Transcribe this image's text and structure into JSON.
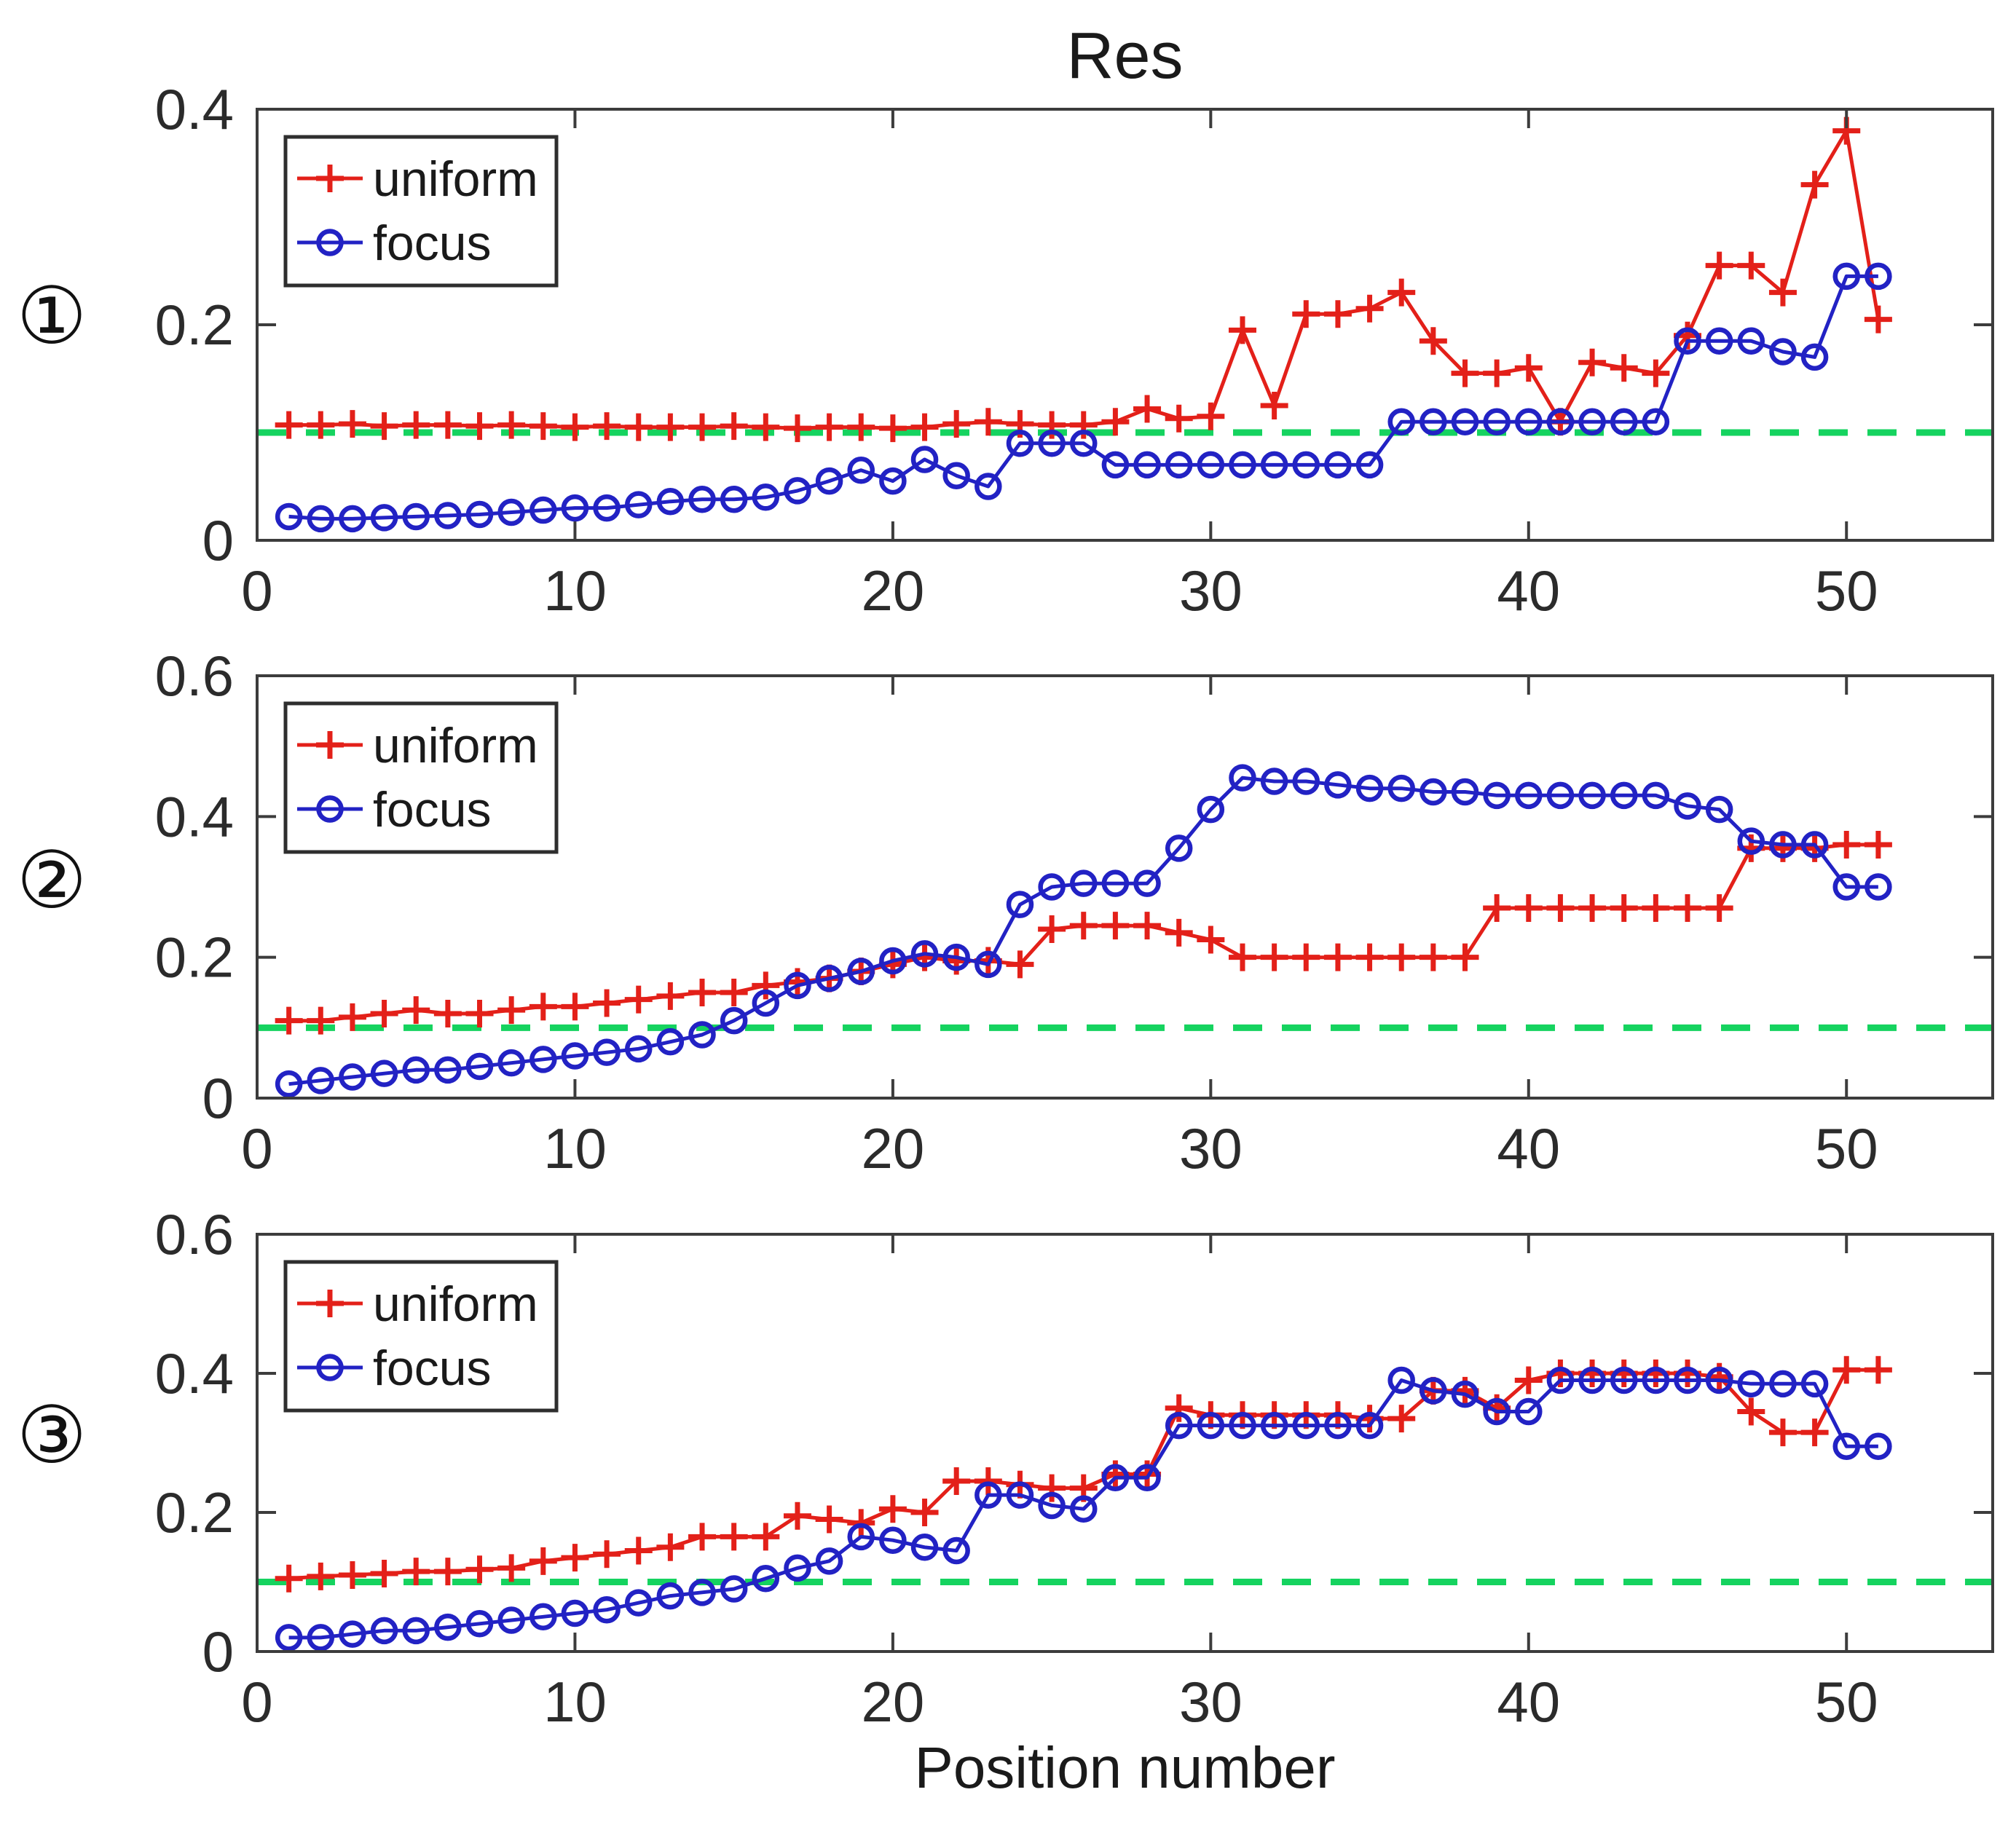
{
  "figure": {
    "title": "Res",
    "xlabel": "Position number",
    "panel_labels": [
      "①",
      "②",
      "③"
    ],
    "colors": {
      "uniform": "#e32019",
      "focus": "#2222c4",
      "threshold": "#15d35f",
      "axis": "#3c3c3c",
      "tick_text": "#2b2b2b",
      "legend_border": "#2e2e2e",
      "background": "#ffffff"
    }
  },
  "chart_data": [
    {
      "type": "line",
      "panel_label": "①",
      "x_range": [
        1,
        51
      ],
      "xlim": [
        0,
        54.6
      ],
      "ylim": [
        0,
        0.4
      ],
      "xticks": [
        0,
        10,
        20,
        30,
        40,
        50
      ],
      "yticks": [
        0,
        0.2,
        0.4
      ],
      "grid": false,
      "threshold_y": 0.1,
      "legend": {
        "position": "top-left",
        "entries": [
          "uniform",
          "focus"
        ]
      },
      "series": [
        {
          "name": "uniform",
          "color": "#e32019",
          "marker": "plus",
          "values": [
            0.107,
            0.107,
            0.108,
            0.106,
            0.107,
            0.107,
            0.106,
            0.107,
            0.106,
            0.105,
            0.106,
            0.105,
            0.105,
            0.105,
            0.106,
            0.105,
            0.104,
            0.105,
            0.105,
            0.104,
            0.105,
            0.108,
            0.11,
            0.108,
            0.107,
            0.107,
            0.11,
            0.122,
            0.113,
            0.115,
            0.195,
            0.125,
            0.21,
            0.21,
            0.215,
            0.23,
            0.185,
            0.155,
            0.155,
            0.16,
            0.11,
            0.165,
            0.16,
            0.155,
            0.19,
            0.255,
            0.255,
            0.23,
            0.33,
            0.38,
            0.205
          ]
        },
        {
          "name": "focus",
          "color": "#2222c4",
          "marker": "circle",
          "values": [
            0.022,
            0.02,
            0.02,
            0.021,
            0.022,
            0.023,
            0.024,
            0.026,
            0.028,
            0.03,
            0.03,
            0.033,
            0.036,
            0.038,
            0.038,
            0.04,
            0.046,
            0.055,
            0.065,
            0.055,
            0.075,
            0.06,
            0.05,
            0.09,
            0.09,
            0.09,
            0.07,
            0.07,
            0.07,
            0.07,
            0.07,
            0.07,
            0.07,
            0.07,
            0.07,
            0.11,
            0.11,
            0.11,
            0.11,
            0.11,
            0.11,
            0.11,
            0.11,
            0.11,
            0.185,
            0.185,
            0.185,
            0.175,
            0.17,
            0.245,
            0.245
          ]
        }
      ]
    },
    {
      "type": "line",
      "panel_label": "②",
      "x_range": [
        1,
        51
      ],
      "xlim": [
        0,
        54.6
      ],
      "ylim": [
        0,
        0.6
      ],
      "xticks": [
        0,
        10,
        20,
        30,
        40,
        50
      ],
      "yticks": [
        0,
        0.2,
        0.4,
        0.6
      ],
      "grid": false,
      "threshold_y": 0.1,
      "legend": {
        "position": "top-left",
        "entries": [
          "uniform",
          "focus"
        ]
      },
      "series": [
        {
          "name": "uniform",
          "color": "#e32019",
          "marker": "plus",
          "values": [
            0.11,
            0.11,
            0.115,
            0.12,
            0.125,
            0.12,
            0.12,
            0.125,
            0.13,
            0.13,
            0.135,
            0.14,
            0.145,
            0.15,
            0.15,
            0.16,
            0.165,
            0.17,
            0.18,
            0.19,
            0.2,
            0.195,
            0.195,
            0.19,
            0.24,
            0.245,
            0.245,
            0.245,
            0.235,
            0.225,
            0.2,
            0.2,
            0.2,
            0.2,
            0.2,
            0.2,
            0.2,
            0.2,
            0.27,
            0.27,
            0.27,
            0.27,
            0.27,
            0.27,
            0.27,
            0.27,
            0.355,
            0.355,
            0.355,
            0.36,
            0.36
          ]
        },
        {
          "name": "focus",
          "color": "#2222c4",
          "marker": "circle",
          "values": [
            0.02,
            0.025,
            0.03,
            0.035,
            0.04,
            0.04,
            0.045,
            0.05,
            0.055,
            0.06,
            0.065,
            0.07,
            0.08,
            0.09,
            0.11,
            0.135,
            0.16,
            0.17,
            0.18,
            0.195,
            0.205,
            0.2,
            0.19,
            0.275,
            0.3,
            0.305,
            0.305,
            0.305,
            0.355,
            0.41,
            0.455,
            0.45,
            0.45,
            0.445,
            0.44,
            0.44,
            0.435,
            0.435,
            0.43,
            0.43,
            0.43,
            0.43,
            0.43,
            0.43,
            0.415,
            0.41,
            0.365,
            0.36,
            0.36,
            0.3,
            0.3
          ]
        }
      ]
    },
    {
      "type": "line",
      "panel_label": "③",
      "x_range": [
        1,
        51
      ],
      "xlim": [
        0,
        54.6
      ],
      "ylim": [
        0,
        0.6
      ],
      "xticks": [
        0,
        10,
        20,
        30,
        40,
        50
      ],
      "yticks": [
        0,
        0.2,
        0.4,
        0.6
      ],
      "grid": false,
      "threshold_y": 0.1,
      "legend": {
        "position": "top-left",
        "entries": [
          "uniform",
          "focus"
        ]
      },
      "series": [
        {
          "name": "uniform",
          "color": "#e32019",
          "marker": "plus",
          "values": [
            0.105,
            0.108,
            0.11,
            0.112,
            0.115,
            0.115,
            0.118,
            0.12,
            0.13,
            0.135,
            0.14,
            0.145,
            0.15,
            0.165,
            0.165,
            0.165,
            0.195,
            0.19,
            0.185,
            0.205,
            0.2,
            0.245,
            0.245,
            0.24,
            0.235,
            0.235,
            0.255,
            0.255,
            0.35,
            0.34,
            0.34,
            0.34,
            0.34,
            0.34,
            0.335,
            0.335,
            0.375,
            0.375,
            0.35,
            0.39,
            0.4,
            0.4,
            0.4,
            0.4,
            0.4,
            0.395,
            0.345,
            0.315,
            0.315,
            0.405,
            0.405
          ]
        },
        {
          "name": "focus",
          "color": "#2222c4",
          "marker": "circle",
          "values": [
            0.02,
            0.02,
            0.025,
            0.03,
            0.03,
            0.035,
            0.04,
            0.045,
            0.05,
            0.055,
            0.06,
            0.07,
            0.08,
            0.085,
            0.09,
            0.105,
            0.12,
            0.13,
            0.165,
            0.16,
            0.15,
            0.145,
            0.225,
            0.225,
            0.21,
            0.205,
            0.25,
            0.25,
            0.325,
            0.325,
            0.325,
            0.325,
            0.325,
            0.325,
            0.325,
            0.39,
            0.375,
            0.37,
            0.345,
            0.345,
            0.39,
            0.39,
            0.39,
            0.39,
            0.39,
            0.39,
            0.385,
            0.385,
            0.385,
            0.295,
            0.295
          ]
        }
      ]
    }
  ]
}
